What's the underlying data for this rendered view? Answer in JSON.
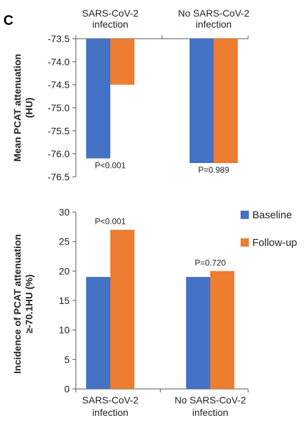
{
  "panel_label": "C",
  "colors": {
    "baseline": "#4472C4",
    "followup": "#ED7D31",
    "axis": "#555555"
  },
  "chart_data": [
    {
      "type": "bar",
      "categories": [
        "SARS-CoV-2 infection",
        "No SARS-CoV-2 infection"
      ],
      "category_lines": [
        [
          "SARS-CoV-2",
          "infection"
        ],
        [
          "No SARS-CoV-2",
          "infection"
        ]
      ],
      "category_position": "top",
      "ylabel_lines": [
        "Mean PCAT attenuation",
        "(HU)"
      ],
      "ylim": [
        -76.5,
        -73.5
      ],
      "yticks": [
        "-73.5",
        "-74.0",
        "-74.5",
        "-75.0",
        "-75.5",
        "-76.0",
        "-76.5"
      ],
      "bar_origin": -73.5,
      "series": [
        {
          "name": "Baseline",
          "values": [
            -76.1,
            -76.2
          ]
        },
        {
          "name": "Follow-up",
          "values": [
            -74.5,
            -76.2
          ]
        }
      ],
      "annotations": [
        "P<0.001",
        "P=0.989"
      ]
    },
    {
      "type": "bar",
      "categories": [
        "SARS-CoV-2 infection",
        "No SARS-CoV-2 infection"
      ],
      "category_lines": [
        [
          "SARS-CoV-2",
          "infection"
        ],
        [
          "No SARS-CoV-2",
          "infection"
        ]
      ],
      "category_position": "bottom",
      "ylabel_lines": [
        "Incidence of PCAT attenuation",
        "≥-70.1HU (%)"
      ],
      "ylim": [
        0,
        30
      ],
      "yticks": [
        "0",
        "5",
        "10",
        "15",
        "20",
        "25",
        "30"
      ],
      "bar_origin": 0,
      "series": [
        {
          "name": "Baseline",
          "values": [
            19,
            19
          ]
        },
        {
          "name": "Follow-up",
          "values": [
            27,
            20
          ]
        }
      ],
      "annotations": [
        "P<0.001",
        "P=0.720"
      ],
      "legend": {
        "position": "right",
        "entries": [
          "Baseline",
          "Follow-up"
        ]
      }
    }
  ]
}
